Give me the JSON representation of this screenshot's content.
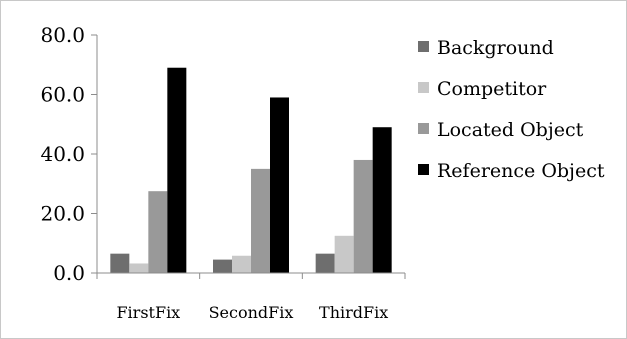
{
  "chart_data": {
    "type": "bar",
    "title": "",
    "xlabel": "",
    "ylabel": "",
    "categories": [
      "FirstFix",
      "SecondFix",
      "ThirdFix"
    ],
    "series": [
      {
        "name": "Background",
        "values": [
          6.5,
          4.5,
          6.5
        ],
        "color": "#6e6e6e"
      },
      {
        "name": "Competitor",
        "values": [
          3.2,
          5.8,
          12.5
        ],
        "color": "#c8c8c8"
      },
      {
        "name": "Located Object",
        "values": [
          27.5,
          35.0,
          38.0
        ],
        "color": "#999999"
      },
      {
        "name": "Reference Object",
        "values": [
          69.0,
          59.0,
          49.0
        ],
        "color": "#000000"
      }
    ],
    "ylim": [
      0,
      80
    ],
    "yticks": [
      0,
      20,
      40,
      60,
      80
    ],
    "ytick_labels": [
      "0.0",
      "20.0",
      "40.0",
      "60.0",
      "80.0"
    ],
    "legend_position": "right",
    "grid": false
  }
}
